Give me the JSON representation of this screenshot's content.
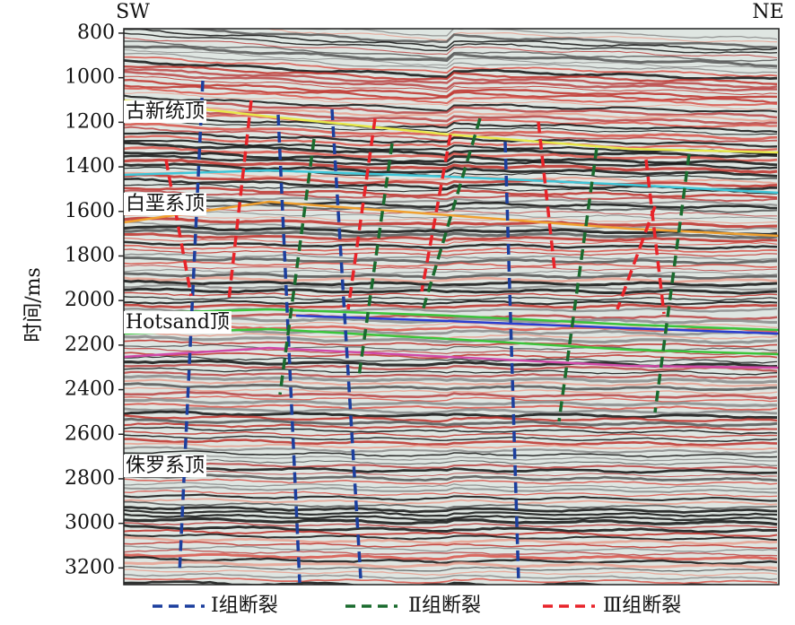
{
  "axis": {
    "label": "时间/ms",
    "ylim": [
      780,
      3275
    ],
    "yticks": [
      800,
      1000,
      1200,
      1400,
      1600,
      1800,
      2000,
      2200,
      2400,
      2600,
      2800,
      3000,
      3200
    ]
  },
  "directions": [
    "SW",
    "NE"
  ],
  "horizons": [
    {
      "label": "古新统顶"
    },
    {
      "label": "白垩系顶"
    },
    {
      "label": "Hotsand顶"
    },
    {
      "label": "侏罗系顶"
    }
  ],
  "legend": [
    {
      "label": "Ⅰ组断裂",
      "color": "#1c3f9e"
    },
    {
      "label": "Ⅱ组断裂",
      "color": "#1a6b2e"
    },
    {
      "label": "Ⅲ组断裂",
      "color": "#e8242a"
    }
  ]
}
